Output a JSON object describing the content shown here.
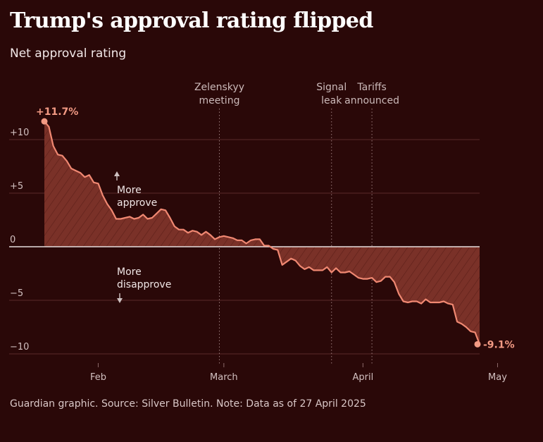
{
  "title": "Trump's approval rating flipped",
  "subtitle": "Net approval rating",
  "footer": "Guardian graphic. Source: Silver Bulletin. Note: Data as of 27 April 2025",
  "colors": {
    "background": "#2a0808",
    "line": "#f08872",
    "area": "#7a3128",
    "grid": "#5a2a2a",
    "zero_line": "#e6dede",
    "label": "#f39a84"
  },
  "chart_data": {
    "type": "area",
    "title": "Trump's approval rating flipped",
    "ylabel": "Net approval rating",
    "xlabel": "",
    "ylim": [
      -11,
      12
    ],
    "x_unit": "days since 20 January 2025",
    "xlim": [
      0,
      102
    ],
    "y_ticks": [
      {
        "value": 10,
        "label": "+10"
      },
      {
        "value": 5,
        "label": "+5"
      },
      {
        "value": 0,
        "label": "0"
      },
      {
        "value": -5,
        "label": "−5"
      },
      {
        "value": -10,
        "label": "−10"
      }
    ],
    "x_ticks": [
      {
        "x": 12,
        "label": "Feb"
      },
      {
        "x": 40,
        "label": "March"
      },
      {
        "x": 71,
        "label": "April"
      },
      {
        "x": 101,
        "label": "May"
      }
    ],
    "events": [
      {
        "x": 39,
        "lines": [
          "Zelenskyy",
          "meeting"
        ]
      },
      {
        "x": 64,
        "lines": [
          "Signal",
          "leak"
        ]
      },
      {
        "x": 73,
        "lines": [
          "Tariffs",
          "announced"
        ]
      }
    ],
    "direction_labels": {
      "up": [
        "More",
        "approve"
      ],
      "down": [
        "More",
        "disapprove"
      ]
    },
    "start_label": "+11.7%",
    "end_label": "-9.1%",
    "series": [
      {
        "name": "Net approval",
        "x": [
          0,
          1,
          2,
          3,
          4,
          5,
          6,
          7,
          8,
          9,
          10,
          11,
          12,
          13,
          14,
          15,
          16,
          17,
          18,
          19,
          20,
          21,
          22,
          23,
          24,
          25,
          26,
          27,
          28,
          29,
          30,
          31,
          32,
          33,
          34,
          35,
          36,
          37,
          38,
          39,
          40,
          41,
          42,
          43,
          44,
          45,
          46,
          47,
          48,
          49,
          50,
          51,
          52,
          53,
          54,
          55,
          56,
          57,
          58,
          59,
          60,
          61,
          62,
          63,
          64,
          65,
          66,
          67,
          68,
          69,
          70,
          71,
          72,
          73,
          74,
          75,
          76,
          77,
          78,
          79,
          80,
          81,
          82,
          83,
          84,
          85,
          86,
          87,
          88,
          89,
          90,
          91,
          92,
          93,
          94,
          95,
          96,
          97
        ],
        "values": [
          11.7,
          11.2,
          9.4,
          8.6,
          8.5,
          8.0,
          7.3,
          7.1,
          6.9,
          6.5,
          6.7,
          6.0,
          5.9,
          4.8,
          4.0,
          3.4,
          2.6,
          2.6,
          2.7,
          2.8,
          2.6,
          2.7,
          3.0,
          2.6,
          2.7,
          3.1,
          3.5,
          3.4,
          2.7,
          1.9,
          1.6,
          1.6,
          1.3,
          1.5,
          1.4,
          1.1,
          1.4,
          1.1,
          0.7,
          0.9,
          1.0,
          0.9,
          0.8,
          0.6,
          0.6,
          0.3,
          0.6,
          0.7,
          0.7,
          0.1,
          0.1,
          -0.2,
          -0.3,
          -1.7,
          -1.4,
          -1.1,
          -1.3,
          -1.8,
          -2.1,
          -1.9,
          -2.2,
          -2.2,
          -2.2,
          -1.9,
          -2.4,
          -2.0,
          -2.4,
          -2.4,
          -2.3,
          -2.6,
          -2.9,
          -3.0,
          -3.0,
          -2.9,
          -3.3,
          -3.2,
          -2.8,
          -2.8,
          -3.3,
          -4.4,
          -5.1,
          -5.2,
          -5.1,
          -5.1,
          -5.3,
          -4.9,
          -5.2,
          -5.2,
          -5.2,
          -5.1,
          -5.3,
          -5.4,
          -7.0,
          -7.2,
          -7.5,
          -7.9,
          -8.0,
          -9.1
        ]
      }
    ]
  }
}
